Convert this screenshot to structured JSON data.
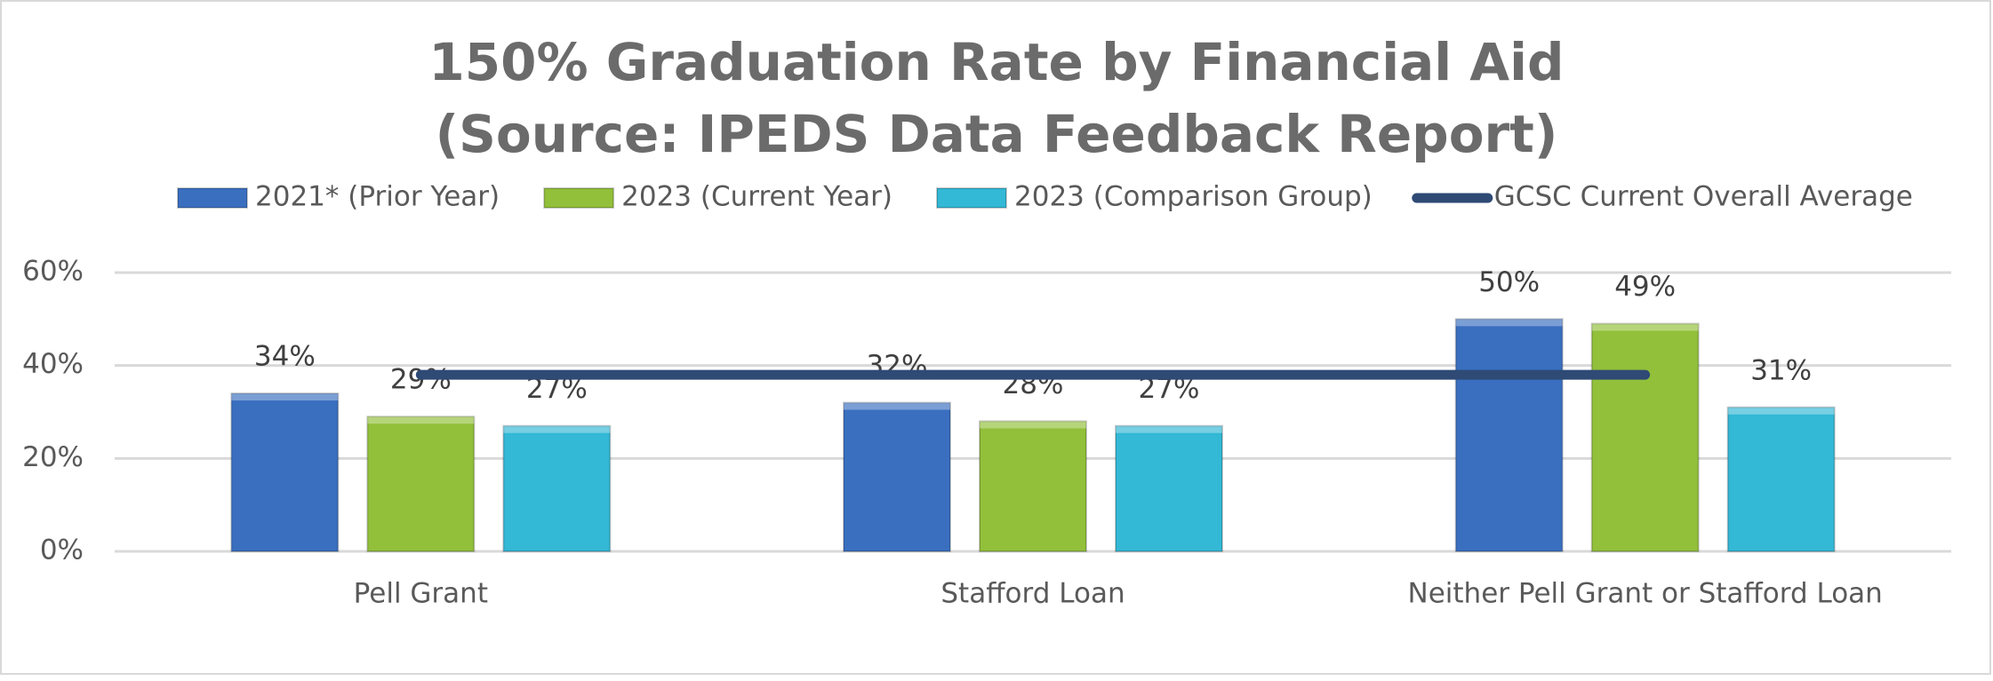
{
  "chart_data": {
    "type": "bar",
    "title": [
      "150% Graduation Rate by Financial Aid",
      "(Source: IPEDS Data Feedback Report)"
    ],
    "categories": [
      "Pell Grant",
      "Stafford Loan",
      "Neither Pell Grant or Stafford Loan"
    ],
    "series": [
      {
        "name": "2021* (Prior Year)",
        "color": "#3a6fc0",
        "values": [
          34,
          32,
          50
        ],
        "value_labels": [
          "34%",
          "32%",
          "50%"
        ]
      },
      {
        "name": "2023 (Current Year)",
        "color": "#92c03a",
        "values": [
          29,
          28,
          49
        ],
        "value_labels": [
          "29%",
          "28%",
          "49%"
        ]
      },
      {
        "name": "2023 (Comparison Group)",
        "color": "#33b8d6",
        "values": [
          27,
          27,
          31
        ],
        "value_labels": [
          "27%",
          "27%",
          "31%"
        ]
      },
      {
        "name": "GCSC Current Overall Average",
        "color": "#2e4a75",
        "type": "line",
        "values": [
          38,
          38,
          38
        ]
      }
    ],
    "ylim": [
      0,
      60
    ],
    "yticks": [
      {
        "value": 0,
        "label": "0%"
      },
      {
        "value": 20,
        "label": "20%"
      },
      {
        "value": 40,
        "label": "40%"
      },
      {
        "value": 60,
        "label": "60%"
      }
    ],
    "grid": true
  }
}
